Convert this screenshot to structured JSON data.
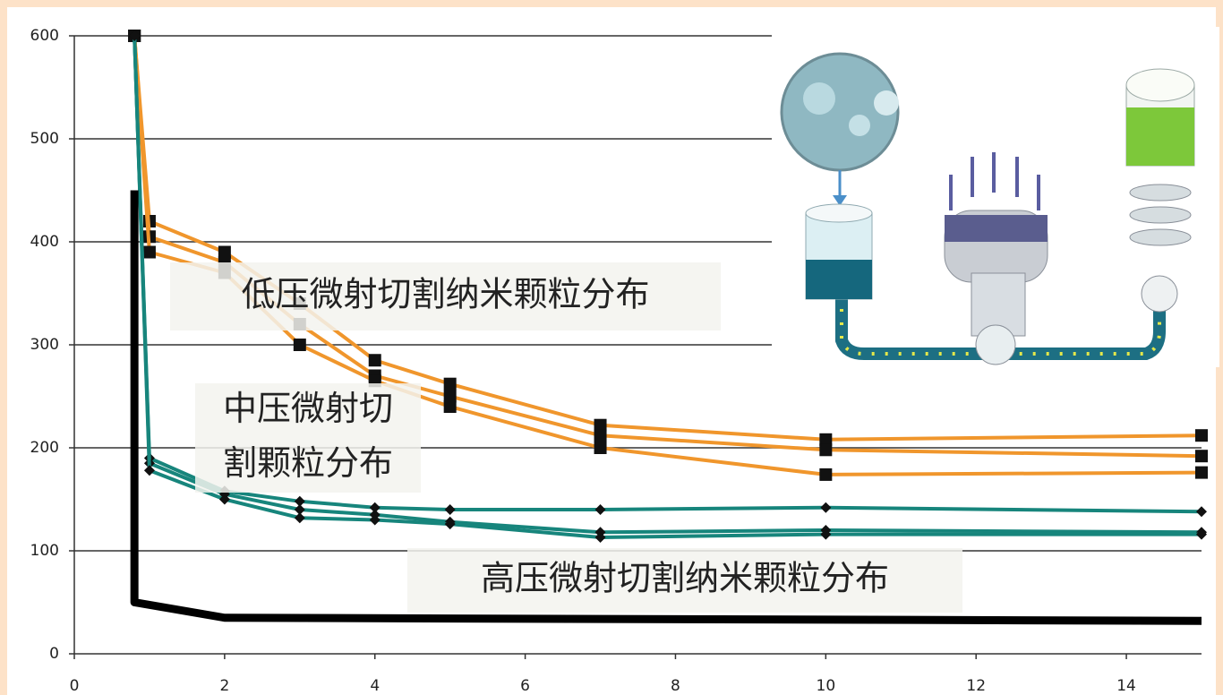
{
  "chart_data": {
    "type": "line",
    "xlim": [
      0,
      15
    ],
    "xticks": [
      0,
      2,
      4,
      6,
      8,
      10,
      12,
      14
    ],
    "ylim": [
      0,
      600
    ],
    "yticks": [
      0,
      100,
      200,
      300,
      400,
      500,
      600
    ],
    "grid": true,
    "series": [
      {
        "color": "#f0962c",
        "marker": "square",
        "x": [
          0.8,
          1,
          2,
          3,
          4,
          5,
          7,
          10,
          15
        ],
        "values": [
          600,
          420,
          390,
          340,
          285,
          262,
          222,
          208,
          212
        ]
      },
      {
        "color": "#f0962c",
        "marker": "square",
        "x": [
          0.8,
          1,
          2,
          3,
          4,
          5,
          7,
          10,
          15
        ],
        "values": [
          600,
          405,
          380,
          320,
          270,
          250,
          212,
          198,
          192
        ]
      },
      {
        "color": "#f0962c",
        "marker": "square",
        "x": [
          0.8,
          1,
          2,
          3,
          4,
          5,
          7,
          10,
          15
        ],
        "values": [
          600,
          390,
          370,
          300,
          265,
          240,
          200,
          174,
          176
        ]
      },
      {
        "color": "#17857c",
        "marker": "diamond",
        "x": [
          0.8,
          1,
          2,
          3,
          4,
          5,
          7,
          10,
          15
        ],
        "values": [
          600,
          190,
          158,
          148,
          142,
          140,
          140,
          142,
          138
        ]
      },
      {
        "color": "#17857c",
        "marker": "diamond",
        "x": [
          0.8,
          1,
          2,
          3,
          4,
          5,
          7,
          10,
          15
        ],
        "values": [
          600,
          185,
          155,
          140,
          135,
          128,
          118,
          120,
          118
        ]
      },
      {
        "color": "#17857c",
        "marker": "diamond",
        "x": [
          0.8,
          1,
          2,
          3,
          4,
          5,
          7,
          10,
          15
        ],
        "values": [
          600,
          178,
          150,
          132,
          130,
          126,
          113,
          116,
          116
        ]
      },
      {
        "color": "#000000",
        "marker": null,
        "x": [
          0.8,
          0.8,
          2,
          15
        ],
        "values": [
          450,
          50,
          35,
          32
        ]
      }
    ],
    "annotations": [
      {
        "lines": [
          "低压微射切割纳米颗粒分布"
        ]
      },
      {
        "lines": [
          "中压微射切",
          "割颗粒分布"
        ]
      },
      {
        "lines": [
          "高压微射切割纳米颗粒分布"
        ]
      }
    ]
  }
}
